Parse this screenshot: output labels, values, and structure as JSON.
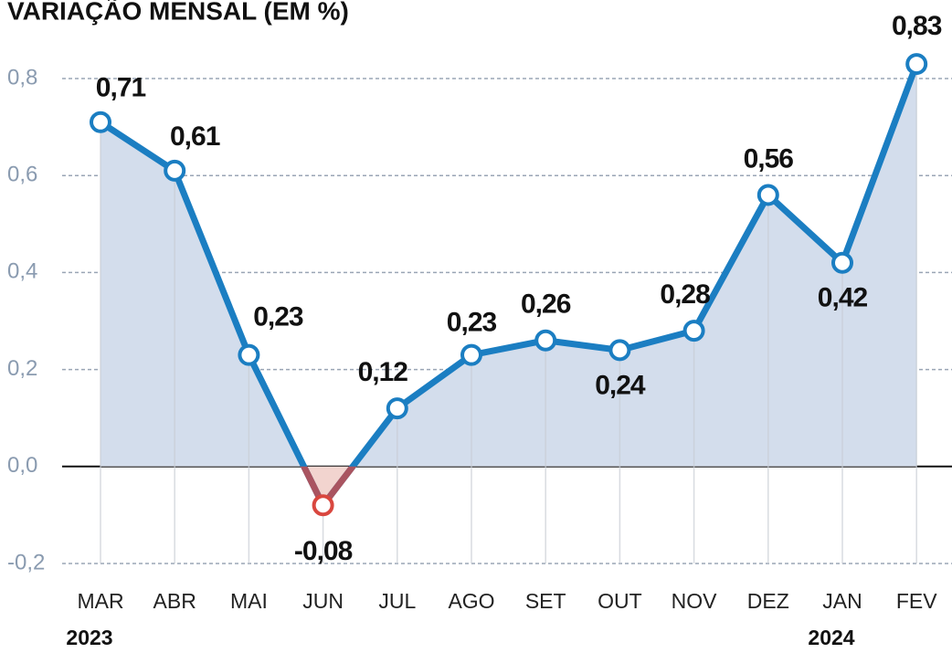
{
  "chart_data": {
    "type": "line",
    "title": "VARIAÇÃO MENSAL (EM %)",
    "categories": [
      "MAR",
      "ABR",
      "MAI",
      "JUN",
      "JUL",
      "AGO",
      "SET",
      "OUT",
      "NOV",
      "DEZ",
      "JAN",
      "FEV"
    ],
    "year_labels": [
      "2023",
      null,
      null,
      null,
      null,
      null,
      null,
      null,
      null,
      null,
      "2024",
      null
    ],
    "values": [
      0.71,
      0.61,
      0.23,
      -0.08,
      0.12,
      0.23,
      0.26,
      0.24,
      0.28,
      0.56,
      0.42,
      0.83
    ],
    "value_labels": [
      "0,71",
      "0,61",
      "0,23",
      "-0,08",
      "0,12",
      "0,23",
      "0,26",
      "0,24",
      "0,28",
      "0,56",
      "0,42",
      "0,83"
    ],
    "color": "#1b7ec2",
    "negative_color": "#d9473f",
    "ylim": [
      -0.2,
      0.8
    ],
    "yticks": [
      {
        "value": -0.2,
        "label": "-0,2"
      },
      {
        "value": 0,
        "label": "0,0"
      },
      {
        "value": 0.2,
        "label": "0,2"
      },
      {
        "value": 0.4,
        "label": "0,4"
      },
      {
        "value": 0.6,
        "label": "0,6"
      },
      {
        "value": 0.8,
        "label": "0,8"
      }
    ],
    "grid": true
  }
}
